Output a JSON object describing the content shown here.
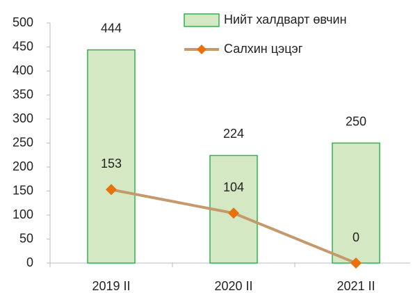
{
  "chart_data": {
    "type": "combo",
    "categories": [
      "2019 II",
      "2020 II",
      "2021 II"
    ],
    "series": [
      {
        "name": "Нийт халдварт өвчин",
        "type": "bar",
        "color": "#d5e8c4",
        "stroke": "#2fb34c",
        "values": [
          444,
          224,
          250
        ]
      },
      {
        "name": "Салхин цэцэг",
        "type": "line",
        "color": "#c49a6c",
        "marker_color": "#e8700e",
        "values": [
          153,
          104,
          0
        ]
      }
    ],
    "ylim": [
      0,
      500
    ],
    "yticks": [
      0,
      50,
      100,
      150,
      200,
      250,
      300,
      350,
      400,
      450,
      500
    ],
    "grid": false,
    "legend": "top-right"
  }
}
